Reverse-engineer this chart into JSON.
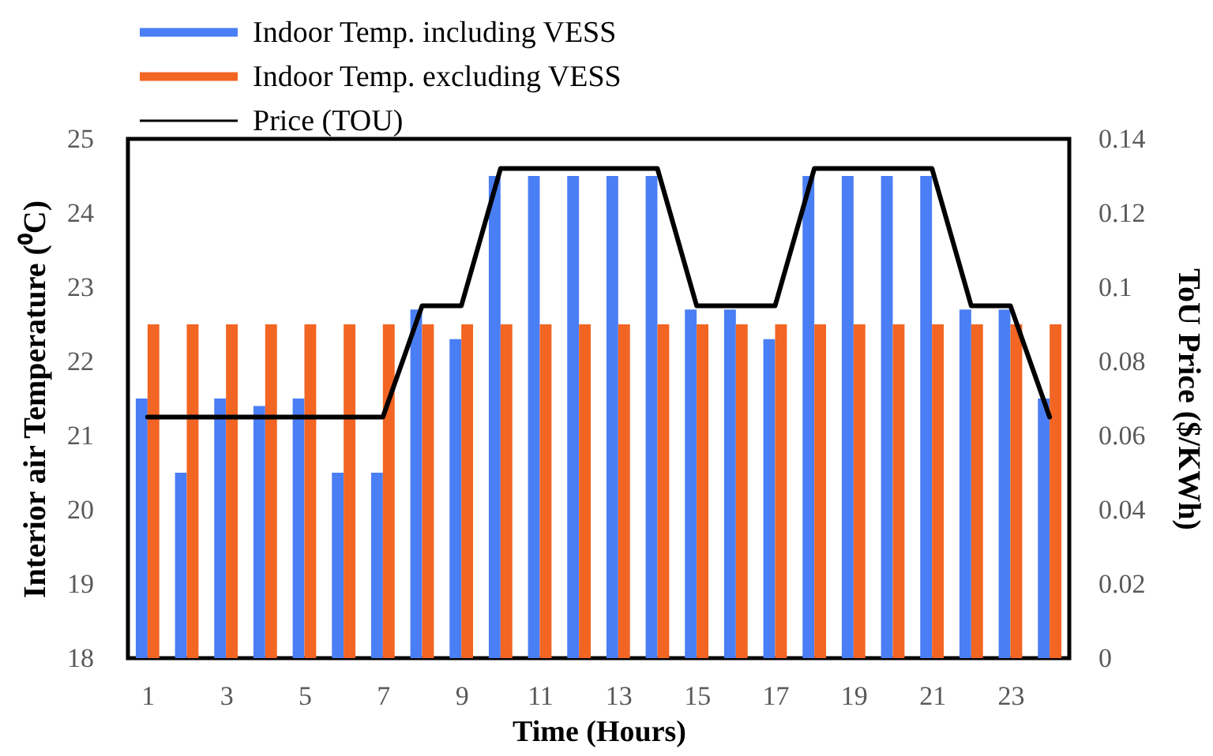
{
  "chart_data": {
    "type": "bar",
    "xlabel": "Time (Hours)",
    "ylabel": "Interior air Temperature (⁰C)",
    "y2label": "ToU Price ($/KWh)",
    "x": [
      1,
      2,
      3,
      4,
      5,
      6,
      7,
      8,
      9,
      10,
      11,
      12,
      13,
      14,
      15,
      16,
      17,
      18,
      19,
      20,
      21,
      22,
      23,
      24
    ],
    "xlim": [
      0.5,
      24.5
    ],
    "xticks": [
      1,
      3,
      5,
      7,
      9,
      11,
      13,
      15,
      17,
      19,
      21,
      23
    ],
    "series": [
      {
        "name": "Indoor Temp. including VESS",
        "color": "#4a7ef5",
        "values": [
          21.5,
          20.5,
          21.5,
          21.4,
          21.5,
          20.5,
          20.5,
          22.7,
          22.3,
          24.5,
          24.5,
          24.5,
          24.5,
          24.5,
          22.7,
          22.7,
          22.3,
          24.5,
          24.5,
          24.5,
          24.5,
          22.7,
          22.7,
          21.5
        ]
      },
      {
        "name": "Indoor Temp. excluding VESS",
        "color": "#f26522",
        "values": [
          22.5,
          22.5,
          22.5,
          22.5,
          22.5,
          22.5,
          22.5,
          22.5,
          22.5,
          22.5,
          22.5,
          22.5,
          22.5,
          22.5,
          22.5,
          22.5,
          22.5,
          22.5,
          22.5,
          22.5,
          22.5,
          22.5,
          22.5,
          22.5
        ]
      },
      {
        "name": "Price (TOU)",
        "type": "line",
        "axis": "y2",
        "color": "#000000",
        "values": [
          0.065,
          0.065,
          0.065,
          0.065,
          0.065,
          0.065,
          0.065,
          0.095,
          0.095,
          0.132,
          0.132,
          0.132,
          0.132,
          0.132,
          0.095,
          0.095,
          0.095,
          0.132,
          0.132,
          0.132,
          0.132,
          0.095,
          0.095,
          0.065
        ]
      }
    ],
    "ylim": [
      18,
      25
    ],
    "yticks": [
      18,
      19,
      20,
      21,
      22,
      23,
      24,
      25
    ],
    "y2lim": [
      0,
      0.14
    ],
    "y2ticks": [
      0,
      0.02,
      0.04,
      0.06,
      0.08,
      0.1,
      0.12,
      0.14
    ],
    "legend": "top left"
  }
}
